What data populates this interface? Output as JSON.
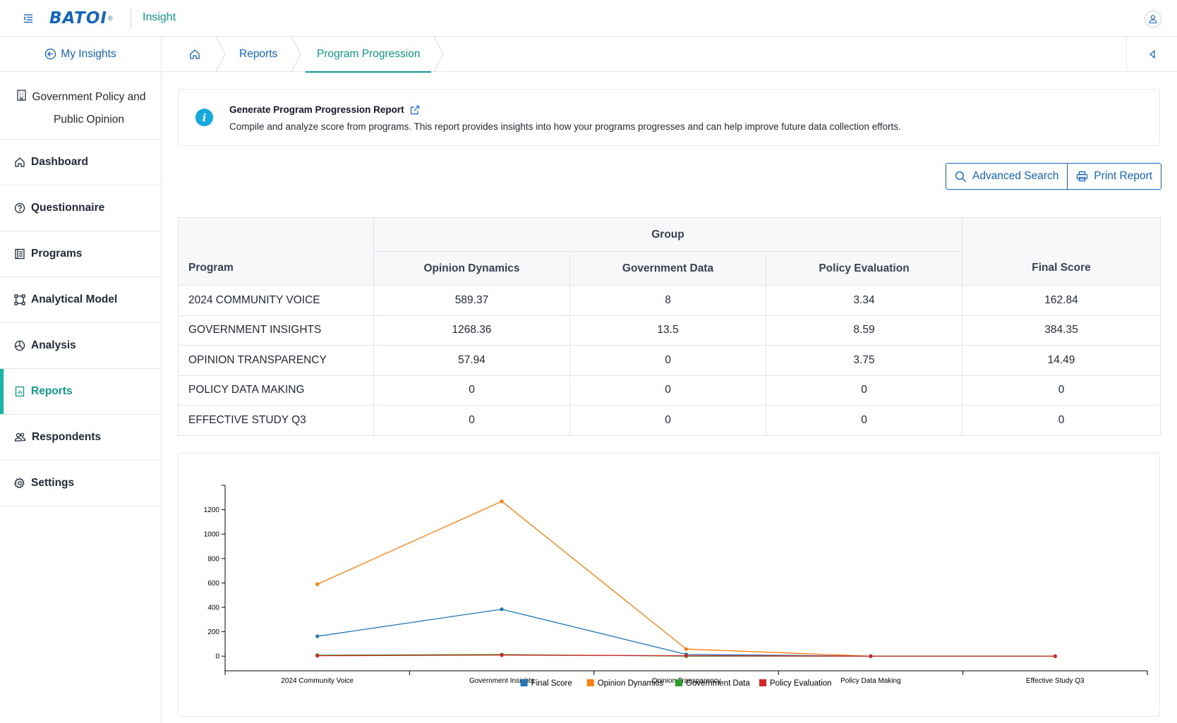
{
  "app": {
    "brand": "BATOI",
    "name": "Insight"
  },
  "sidebar": {
    "back_label": "My Insights",
    "workspace_line1": "Government Policy and",
    "workspace_line2": "Public Opinion",
    "items": [
      {
        "label": "Dashboard",
        "icon": "home-icon"
      },
      {
        "label": "Questionnaire",
        "icon": "question-circle-icon"
      },
      {
        "label": "Programs",
        "icon": "list-icon"
      },
      {
        "label": "Analytical Model",
        "icon": "model-icon"
      },
      {
        "label": "Analysis",
        "icon": "pie-icon"
      },
      {
        "label": "Reports",
        "icon": "report-icon",
        "active": true
      },
      {
        "label": "Respondents",
        "icon": "users-icon"
      },
      {
        "label": "Settings",
        "icon": "gear-icon"
      }
    ]
  },
  "breadcrumb": {
    "reports": "Reports",
    "current": "Program Progression"
  },
  "info": {
    "title": "Generate Program Progression Report",
    "description": "Compile and analyze score from programs. This report provides insights into how your programs progresses and can help improve future data collection efforts."
  },
  "actions": {
    "advanced_search": "Advanced Search",
    "print_report": "Print Report"
  },
  "table": {
    "program_header": "Program",
    "group_header": "Group",
    "group_columns": [
      "Opinion Dynamics",
      "Government Data",
      "Policy Evaluation"
    ],
    "final_header": "Final Score",
    "rows": [
      {
        "program": "2024 COMMUNITY VOICE",
        "opinion": "589.37",
        "government": "8",
        "policy": "3.34",
        "final": "162.84"
      },
      {
        "program": "GOVERNMENT INSIGHTS",
        "opinion": "1268.36",
        "government": "13.5",
        "policy": "8.59",
        "final": "384.35"
      },
      {
        "program": "OPINION TRANSPARENCY",
        "opinion": "57.94",
        "government": "0",
        "policy": "3.75",
        "final": "14.49"
      },
      {
        "program": "POLICY DATA MAKING",
        "opinion": "0",
        "government": "0",
        "policy": "0",
        "final": "0"
      },
      {
        "program": "EFFECTIVE STUDY Q3",
        "opinion": "0",
        "government": "0",
        "policy": "0",
        "final": "0"
      }
    ]
  },
  "chart_data": {
    "type": "line",
    "categories": [
      "2024 Community Voice",
      "Government Insights",
      "Opinion Transparency",
      "Policy Data Making",
      "Effective Study Q3"
    ],
    "series": [
      {
        "name": "Final Score",
        "color": "#1f77b4",
        "values": [
          162.84,
          384.35,
          14.49,
          0,
          0
        ]
      },
      {
        "name": "Opinion Dynamics",
        "color": "#ff7f0e",
        "values": [
          589.37,
          1268.36,
          57.94,
          0,
          0
        ]
      },
      {
        "name": "Government Data",
        "color": "#2ca02c",
        "values": [
          8,
          13.5,
          0,
          0,
          0
        ]
      },
      {
        "name": "Policy Evaluation",
        "color": "#d62728",
        "values": [
          3.34,
          8.59,
          3.75,
          0,
          0
        ]
      }
    ],
    "yticks": [
      0,
      200,
      400,
      600,
      800,
      1000,
      1200
    ],
    "ylim": [
      -120,
      1400
    ],
    "legend": "bottom",
    "grid": false
  },
  "colors": {
    "primary": "#1565c0",
    "accent": "#0f9b8e",
    "info": "#14a9e0"
  }
}
